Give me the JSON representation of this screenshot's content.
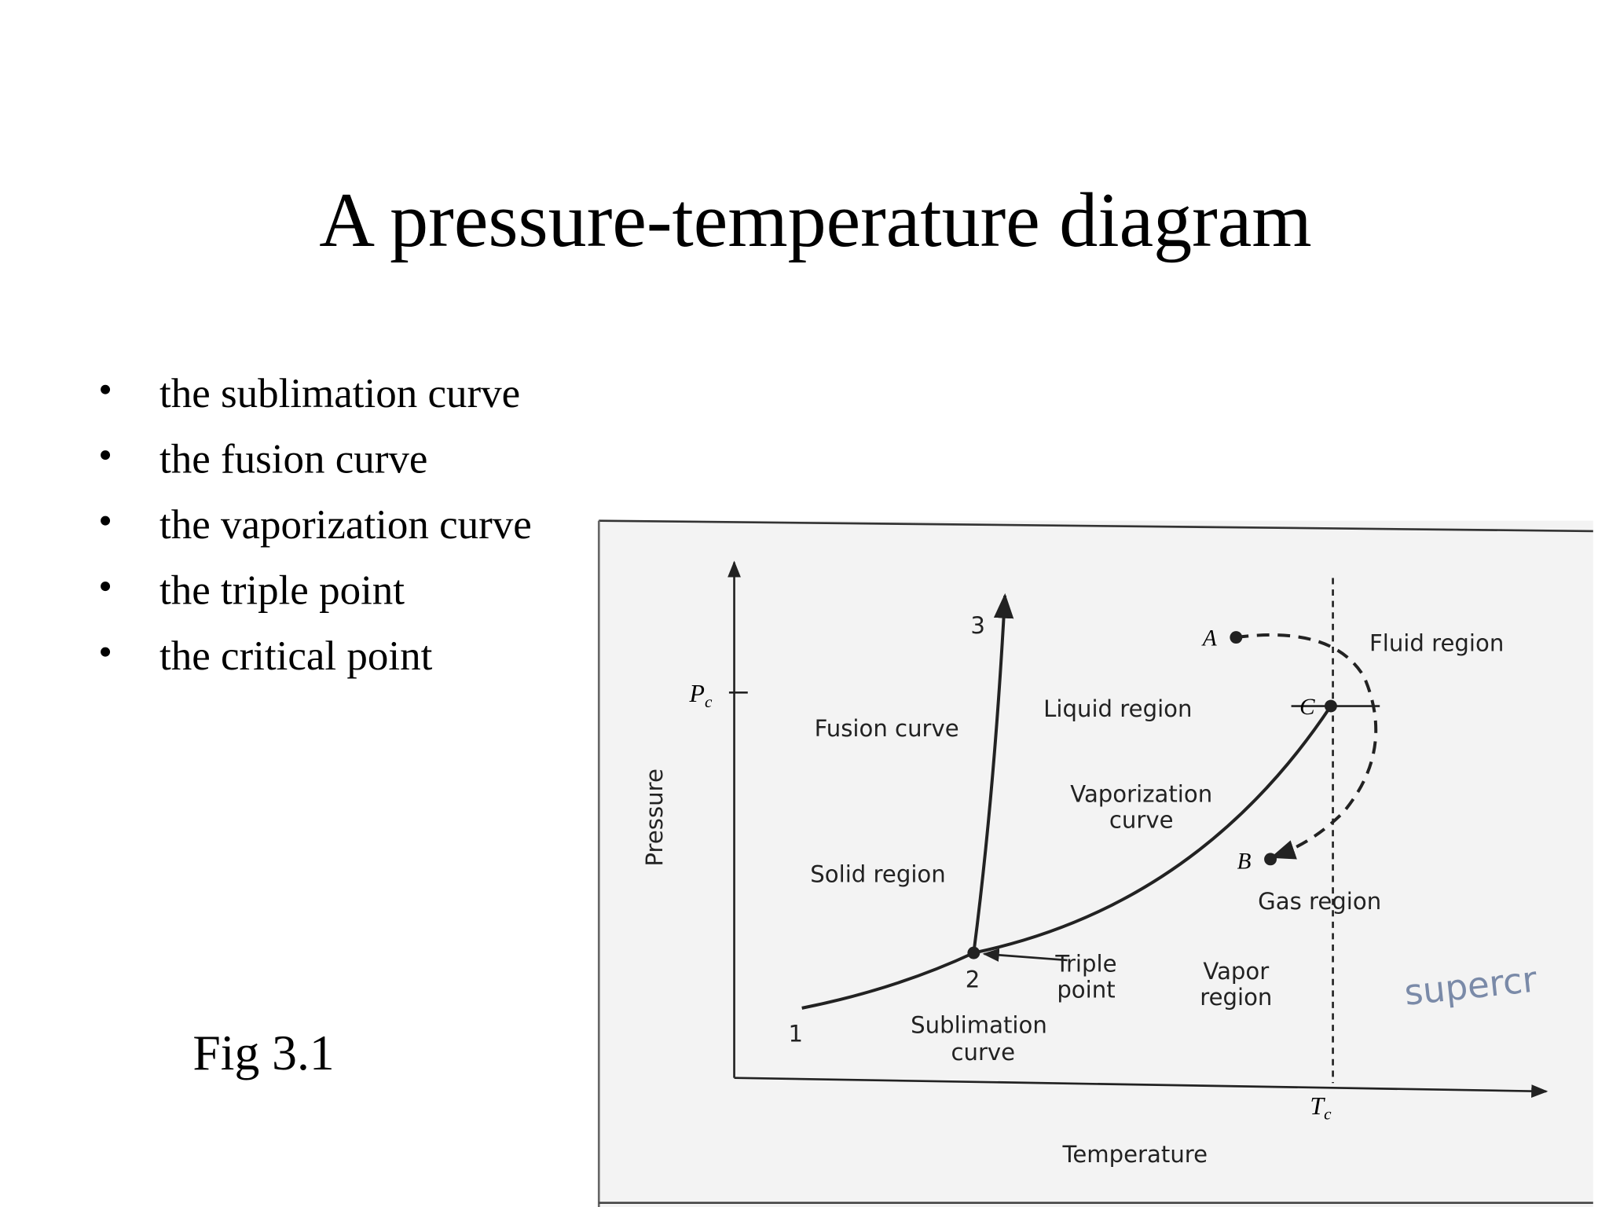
{
  "title": "A pressure-temperature diagram",
  "bullets": [
    "the sublimation curve",
    "the fusion curve",
    "the vaporization curve",
    "the triple point",
    "the critical point"
  ],
  "caption": "Fig 3.1",
  "diagram": {
    "x_axis_label": "Temperature",
    "y_axis_label": "Pressure",
    "pc_label": {
      "symbol": "P",
      "subscript": "c"
    },
    "tc_label": {
      "symbol": "T",
      "subscript": "c"
    },
    "points": {
      "one": "1",
      "two": "2",
      "three": "3",
      "A": "A",
      "B": "B",
      "C": "C"
    },
    "regions": [
      "Fluid region",
      "Liquid region",
      "Solid region",
      "Gas region",
      "Vapor",
      "region"
    ],
    "curves": [
      "Fusion curve",
      "Vaporization",
      "curve",
      "Sublimation",
      "curve"
    ],
    "triple_point": [
      "Triple",
      "point"
    ],
    "handwriting": "supercr"
  }
}
